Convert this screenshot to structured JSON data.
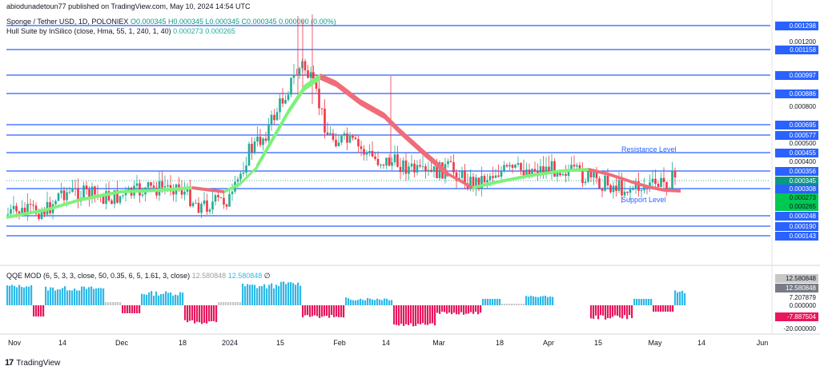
{
  "publisher": "abiodunadetoun77 published on TradingView.com, May 10, 2024 14:54 UTC",
  "symbol_line": {
    "name": "Sponge / Tether USD, 1D, POLONIEX",
    "ohlc": "O0.000345  H0.000345  L0.000345  C0.000345  0.000000 (0.00%)"
  },
  "hull_line": {
    "name": "Hull Suite by InSilico (close, Hma, 55, 1, 240, 1, 40)",
    "v1": "0.000273",
    "v2": "0.000265"
  },
  "oscillator_line": {
    "name": "QQE MOD (6, 5, 3, 3, close, 50, 0.35, 6, 5, 1.61, 3, close)",
    "v1": "12.580848",
    "v2": "12.580848",
    "v3": "∅"
  },
  "annotations": {
    "resistance": "Resistance Level",
    "support": "Support Level"
  },
  "colors": {
    "level_line": "#2962ff",
    "bull": "#22ab94",
    "bear": "#f23645",
    "hull_up": "#7cf27a",
    "hull_down": "#f06c79",
    "osc_up": "#2fb9e8",
    "osc_down": "#e8175d",
    "osc_neutral": "#c8c8c8"
  },
  "price_axis": [
    {
      "label": "0.001298",
      "value": 0.001298,
      "tag": true
    },
    {
      "label": "0.001200",
      "value": 0.0012,
      "tag": false
    },
    {
      "label": "0.001158",
      "value": 0.001158,
      "tag": true
    },
    {
      "label": "0.000997",
      "value": 0.000997,
      "tag": true
    },
    {
      "label": "0.000886",
      "value": 0.000886,
      "tag": true
    },
    {
      "label": "0.000800",
      "value": 0.0008,
      "tag": false
    },
    {
      "label": "0.000695",
      "value": 0.000695,
      "tag": true
    },
    {
      "label": "0.000577",
      "value": 0.000577,
      "tag": true
    },
    {
      "label": "0.000500",
      "value": 0.0005,
      "tag": false
    },
    {
      "label": "0.000455",
      "value": 0.000455,
      "tag": true
    },
    {
      "label": "0.000400",
      "value": 0.0004,
      "tag": false
    },
    {
      "label": "0.000356",
      "value": 0.000356,
      "tag": true
    },
    {
      "label": "0.000345",
      "value": 0.000345,
      "tag": "green"
    },
    {
      "label": "0.000308",
      "value": 0.000308,
      "tag": true
    },
    {
      "label": "0.000273",
      "value": 0.000273,
      "tag": "hull"
    },
    {
      "label": "0.000265",
      "value": 0.000265,
      "tag": "hull"
    },
    {
      "label": "0.000248",
      "value": 0.000248,
      "tag": true
    },
    {
      "label": "0.000190",
      "value": 0.00019,
      "tag": true
    },
    {
      "label": "0.000143",
      "value": 0.000143,
      "tag": true
    }
  ],
  "osc_axis": [
    {
      "label": "12.580848",
      "tag": "gray"
    },
    {
      "label": "12.580848",
      "tag": "gray2"
    },
    {
      "label": "7.207879",
      "tag": false
    },
    {
      "label": "0.000000",
      "tag": false
    },
    {
      "label": "-7.887504",
      "tag": "red"
    },
    {
      "label": "-20.000000",
      "tag": false
    }
  ],
  "time_axis": [
    "Nov",
    "14",
    "Dec",
    "18",
    "2024",
    "15",
    "Feb",
    "14",
    "Mar",
    "18",
    "Apr",
    "15",
    "May",
    "14",
    "Jun"
  ],
  "footer": {
    "brand": "TradingView"
  }
}
